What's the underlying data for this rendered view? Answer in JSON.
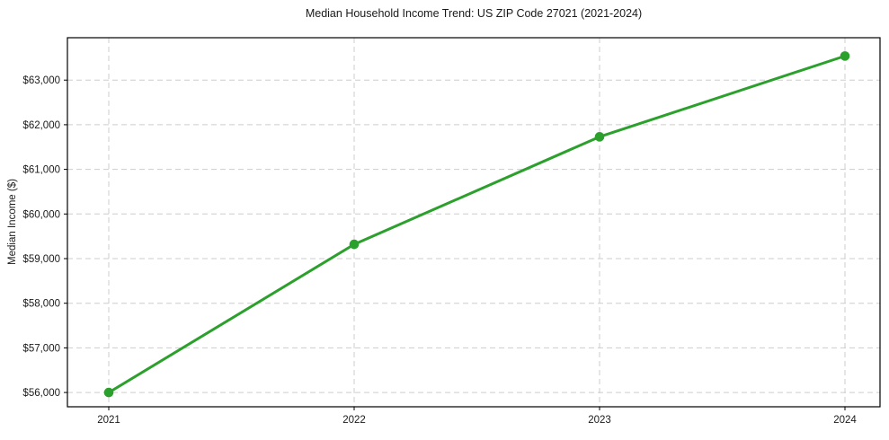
{
  "page": {
    "background": "#ffffff"
  },
  "chart_data": {
    "type": "line",
    "title": "Median Household Income Trend: US ZIP Code 27021 (2021-2024)",
    "xlabel": "",
    "ylabel": "Median Income ($)",
    "x": [
      "2021",
      "2022",
      "2023",
      "2024"
    ],
    "values": [
      56000,
      59320,
      61730,
      63540
    ],
    "xtick_labels": [
      "2021",
      "2022",
      "2023",
      "2024"
    ],
    "yticks": [
      56000,
      57000,
      58000,
      59000,
      60000,
      61000,
      62000,
      63000
    ],
    "ytick_labels": [
      "$56,000",
      "$57,000",
      "$58,000",
      "$59,000",
      "$60,000",
      "$61,000",
      "$62,000",
      "$63,000"
    ],
    "ylim": [
      55680,
      63950
    ],
    "grid": "dashed",
    "legend": "none",
    "line_color": "#2ca02c",
    "grid_color": "#cdcdcd",
    "axis_color": "#000000",
    "text_color": "#1a1a1a",
    "marker": "circle",
    "line_width": 3,
    "marker_radius": 5.3
  }
}
